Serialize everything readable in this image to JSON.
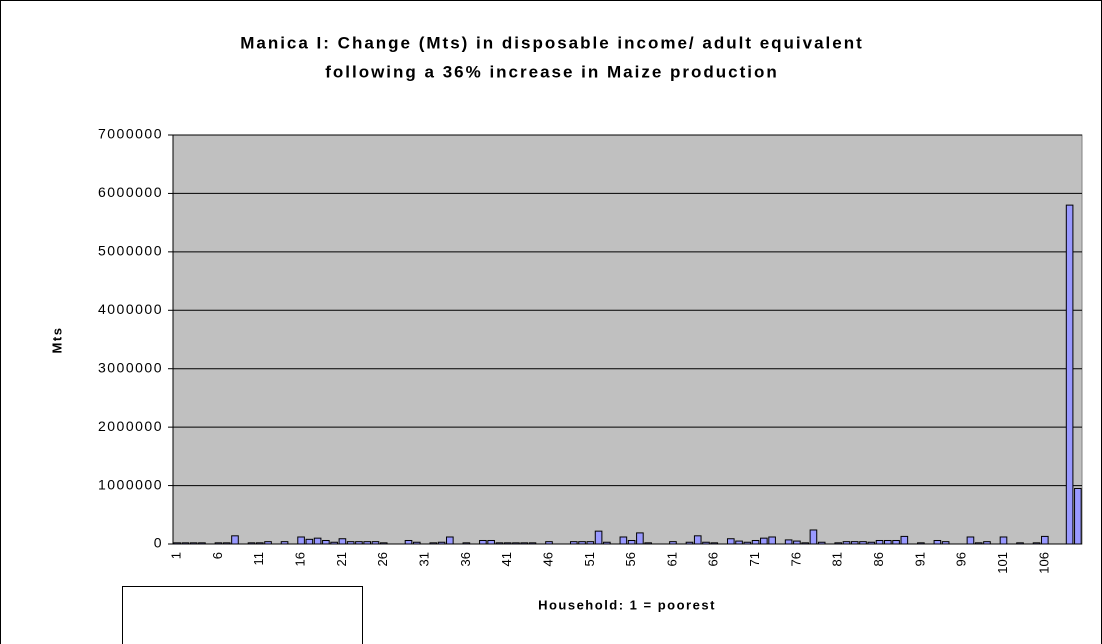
{
  "chart_data": {
    "type": "bar",
    "title": [
      "Manica I: Change (Mts) in disposable income/ adult equivalent",
      "following a 36% increase in Maize production"
    ],
    "x_label": "Household: 1 = poorest",
    "y_label": "Mts",
    "categories": [
      "1",
      null,
      null,
      null,
      null,
      "6",
      null,
      null,
      null,
      null,
      "11",
      null,
      null,
      null,
      null,
      "16",
      null,
      null,
      null,
      null,
      "21",
      null,
      null,
      null,
      null,
      "26",
      null,
      null,
      null,
      null,
      "31",
      null,
      null,
      null,
      null,
      "36",
      null,
      null,
      null,
      null,
      "41",
      null,
      null,
      null,
      null,
      "46",
      null,
      null,
      null,
      null,
      "51",
      null,
      null,
      null,
      null,
      "56",
      null,
      null,
      null,
      null,
      "61",
      null,
      null,
      null,
      null,
      "66",
      null,
      null,
      null,
      null,
      "71",
      null,
      null,
      null,
      null,
      "76",
      null,
      null,
      null,
      null,
      "81",
      null,
      null,
      null,
      null,
      "86",
      null,
      null,
      null,
      null,
      "91",
      null,
      null,
      null,
      null,
      "96",
      null,
      null,
      null,
      null,
      "101",
      null,
      null,
      null,
      null,
      "106",
      null,
      null,
      null,
      null
    ],
    "values": [
      20000,
      20000,
      20000,
      20000,
      0,
      20000,
      20000,
      140000,
      0,
      20000,
      20000,
      40000,
      0,
      40000,
      0,
      120000,
      80000,
      100000,
      60000,
      30000,
      90000,
      40000,
      40000,
      40000,
      40000,
      20000,
      0,
      0,
      60000,
      30000,
      0,
      20000,
      30000,
      120000,
      0,
      20000,
      0,
      60000,
      60000,
      20000,
      20000,
      20000,
      20000,
      20000,
      0,
      40000,
      0,
      0,
      40000,
      40000,
      40000,
      220000,
      30000,
      0,
      120000,
      60000,
      190000,
      20000,
      0,
      0,
      40000,
      0,
      30000,
      140000,
      30000,
      20000,
      0,
      90000,
      50000,
      30000,
      60000,
      100000,
      120000,
      0,
      70000,
      50000,
      20000,
      240000,
      30000,
      0,
      20000,
      40000,
      40000,
      40000,
      30000,
      60000,
      60000,
      60000,
      130000,
      0,
      20000,
      0,
      60000,
      40000,
      0,
      0,
      120000,
      20000,
      40000,
      0,
      120000,
      0,
      20000,
      0,
      20000,
      130000,
      0,
      0,
      5800000,
      950000
    ],
    "color": "#9999ff",
    "ylim": [
      0,
      7000000
    ],
    "yticks": [
      0,
      1000000,
      2000000,
      3000000,
      4000000,
      5000000,
      6000000,
      7000000
    ],
    "grid": true
  }
}
